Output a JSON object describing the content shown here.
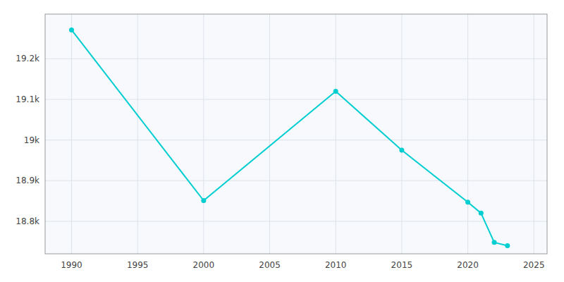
{
  "chart_data": {
    "type": "line",
    "x": [
      1990,
      2000,
      2010,
      2015,
      2020,
      2021,
      2022,
      2023
    ],
    "values": [
      19271,
      18851,
      19120,
      18975,
      18847,
      18820,
      18748,
      18740
    ],
    "color": "#00CED1",
    "marker": "circle",
    "xlim": [
      1988,
      2026
    ],
    "xticks": [
      1990,
      1995,
      2000,
      2005,
      2010,
      2015,
      2020,
      2025
    ],
    "ylim": [
      18720,
      19310
    ],
    "yticks": [
      {
        "value": 18800,
        "label": "18.8k"
      },
      {
        "value": 18900,
        "label": "18.9k"
      },
      {
        "value": 19000,
        "label": "19k"
      },
      {
        "value": 19100,
        "label": "19.1k"
      },
      {
        "value": 19200,
        "label": "19.2k"
      }
    ],
    "grid": true
  }
}
